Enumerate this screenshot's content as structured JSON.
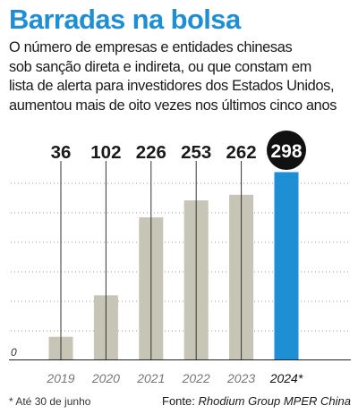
{
  "title": "Barradas na bolsa",
  "subtitle_lines": [
    "O número de empresas e entidades chinesas",
    "sob sanção direta e indireta, ou que constam em",
    "lista de alerta para investidores dos Estados Unidos,",
    "aumentou mais de oito vezes nos últimos cinco anos"
  ],
  "footnote": "* Até 30 de junho",
  "source_prefix": "Fonte: ",
  "source_name": "Rhodium Group MPER China",
  "colors": {
    "title": "#1e8fd5",
    "bar": "#c6c5b6",
    "highlight_bar": "#1e8fd5",
    "highlight_circle": "#111111"
  },
  "chart_data": {
    "type": "bar",
    "categories": [
      "2019",
      "2020",
      "2021",
      "2022",
      "2023",
      "2024*"
    ],
    "values": [
      36,
      102,
      226,
      253,
      262,
      298
    ],
    "highlight_index": 5,
    "y_zero_label": "0",
    "ylim": [
      0,
      330
    ],
    "grid": "dotted horizontal"
  }
}
